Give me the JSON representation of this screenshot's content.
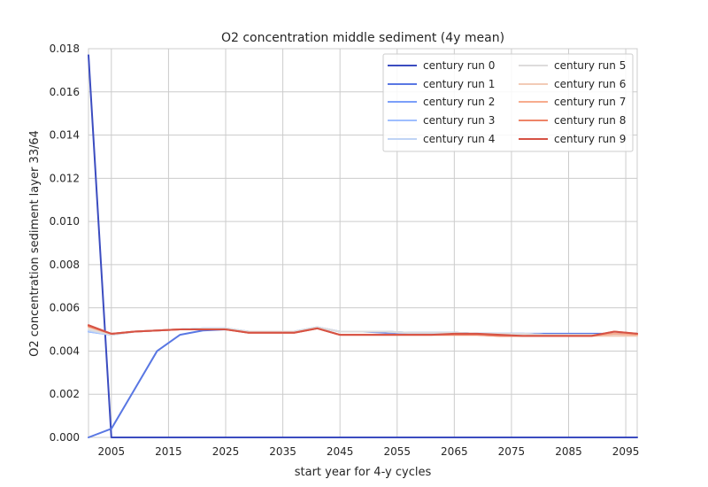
{
  "chart_data": {
    "type": "line",
    "title": "O2 concentration middle sediment (4y mean)",
    "xlabel": "start year for 4-y cycles",
    "ylabel": "O2 concentration sediment layer 33/64",
    "xlim": [
      2001,
      2097
    ],
    "ylim": [
      0.0,
      0.018
    ],
    "xticks": [
      2005,
      2015,
      2025,
      2035,
      2045,
      2055,
      2065,
      2075,
      2085,
      2095
    ],
    "xtick_labels": [
      "2005",
      "2015",
      "2025",
      "2035",
      "2045",
      "2055",
      "2065",
      "2075",
      "2085",
      "2095"
    ],
    "yticks": [
      0.0,
      0.002,
      0.004,
      0.006,
      0.008,
      0.01,
      0.012,
      0.014,
      0.016,
      0.018
    ],
    "ytick_labels": [
      "0.000",
      "0.002",
      "0.004",
      "0.006",
      "0.008",
      "0.010",
      "0.012",
      "0.014",
      "0.016",
      "0.018"
    ],
    "grid": true,
    "legend_position": "top-right",
    "legend_columns": 2,
    "x": [
      2001,
      2005,
      2009,
      2013,
      2017,
      2021,
      2025,
      2029,
      2033,
      2037,
      2041,
      2045,
      2049,
      2053,
      2057,
      2061,
      2065,
      2069,
      2073,
      2077,
      2081,
      2085,
      2089,
      2093,
      2097
    ],
    "series": [
      {
        "name": "century run 0",
        "color": "#3b4cc0",
        "values": [
          0.0177,
          0.0,
          0.0,
          0.0,
          0.0,
          0.0,
          0.0,
          0.0,
          0.0,
          0.0,
          0.0,
          0.0,
          0.0,
          0.0,
          0.0,
          0.0,
          0.0,
          0.0,
          0.0,
          0.0,
          0.0,
          0.0,
          0.0,
          0.0,
          0.0
        ]
      },
      {
        "name": "century run 1",
        "color": "#5977e3",
        "values": [
          0.0,
          0.0004,
          0.0022,
          0.004,
          0.00475,
          0.00495,
          0.005,
          0.0049,
          0.0049,
          0.0049,
          0.0051,
          0.0049,
          0.0049,
          0.00485,
          0.00485,
          0.00485,
          0.00485,
          0.0048,
          0.0048,
          0.0048,
          0.0048,
          0.0048,
          0.0048,
          0.0048,
          0.0048
        ]
      },
      {
        "name": "century run 2",
        "color": "#7b9ff9",
        "values": [
          0.0049,
          0.00475,
          0.0049,
          0.00495,
          0.005,
          0.00505,
          0.00505,
          0.0049,
          0.0049,
          0.0049,
          0.0051,
          0.0049,
          0.0049,
          0.0049,
          0.00485,
          0.00485,
          0.00485,
          0.0048,
          0.0048,
          0.0048,
          0.00475,
          0.00475,
          0.00475,
          0.00475,
          0.00475
        ]
      },
      {
        "name": "century run 3",
        "color": "#9ebeff",
        "values": [
          0.0049,
          0.00475,
          0.0049,
          0.00495,
          0.005,
          0.00505,
          0.00505,
          0.0049,
          0.0049,
          0.0049,
          0.0051,
          0.0049,
          0.0049,
          0.0049,
          0.00485,
          0.00485,
          0.00485,
          0.0048,
          0.0048,
          0.0048,
          0.00475,
          0.00475,
          0.00475,
          0.00475,
          0.00475
        ]
      },
      {
        "name": "century run 4",
        "color": "#c0d4f5",
        "values": [
          0.00495,
          0.00475,
          0.0049,
          0.00495,
          0.005,
          0.00505,
          0.00505,
          0.0049,
          0.0049,
          0.0049,
          0.0051,
          0.0049,
          0.0049,
          0.0049,
          0.00485,
          0.00485,
          0.00485,
          0.0048,
          0.0048,
          0.0048,
          0.00475,
          0.00475,
          0.00475,
          0.00475,
          0.00475
        ]
      },
      {
        "name": "century run 5",
        "color": "#dddcdc",
        "values": [
          0.005,
          0.00475,
          0.0049,
          0.00495,
          0.005,
          0.00505,
          0.00505,
          0.0049,
          0.0049,
          0.0049,
          0.0051,
          0.0049,
          0.0049,
          0.0049,
          0.00485,
          0.00485,
          0.00485,
          0.0048,
          0.0048,
          0.0048,
          0.00475,
          0.00475,
          0.00475,
          0.00475,
          0.00475
        ]
      },
      {
        "name": "century run 6",
        "color": "#f2cbb7",
        "values": [
          0.0051,
          0.0048,
          0.0049,
          0.00495,
          0.005,
          0.005,
          0.005,
          0.00485,
          0.00485,
          0.00485,
          0.00505,
          0.00475,
          0.00475,
          0.00475,
          0.00475,
          0.00475,
          0.00475,
          0.00475,
          0.0047,
          0.0047,
          0.0047,
          0.0047,
          0.0047,
          0.0047,
          0.0047
        ]
      },
      {
        "name": "century run 7",
        "color": "#f7ac8e",
        "values": [
          0.00515,
          0.0048,
          0.0049,
          0.00495,
          0.005,
          0.005,
          0.005,
          0.00485,
          0.00485,
          0.00485,
          0.00505,
          0.00475,
          0.00475,
          0.00475,
          0.00475,
          0.00475,
          0.00475,
          0.00475,
          0.0047,
          0.0047,
          0.0047,
          0.0047,
          0.0047,
          0.0048,
          0.00475
        ]
      },
      {
        "name": "century run 8",
        "color": "#ee8468",
        "values": [
          0.00515,
          0.0048,
          0.0049,
          0.00495,
          0.005,
          0.005,
          0.005,
          0.00485,
          0.00485,
          0.00485,
          0.00505,
          0.00475,
          0.00475,
          0.00475,
          0.00475,
          0.00475,
          0.00475,
          0.00475,
          0.0047,
          0.0047,
          0.0047,
          0.0047,
          0.0047,
          0.0049,
          0.0048
        ]
      },
      {
        "name": "century run 9",
        "color": "#d65244",
        "values": [
          0.0052,
          0.0048,
          0.0049,
          0.00495,
          0.005,
          0.005,
          0.005,
          0.00485,
          0.00485,
          0.00485,
          0.00505,
          0.00475,
          0.00475,
          0.00475,
          0.00475,
          0.00475,
          0.0048,
          0.0048,
          0.00475,
          0.0047,
          0.0047,
          0.0047,
          0.0047,
          0.0049,
          0.0048
        ]
      }
    ]
  }
}
